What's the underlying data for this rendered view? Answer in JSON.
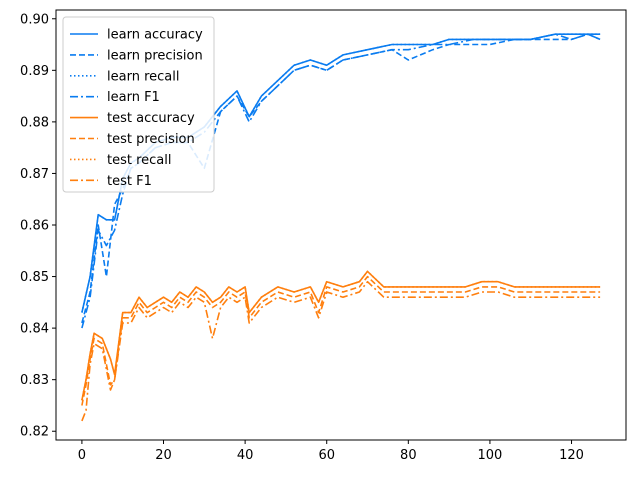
{
  "chart_data": {
    "type": "line",
    "title": "",
    "xlabel": "",
    "ylabel": "",
    "xlim": [
      -6.35,
      133.35
    ],
    "ylim": [
      0.8183,
      0.9017
    ],
    "xticks": [
      0,
      20,
      40,
      60,
      80,
      100,
      120
    ],
    "xtick_labels": [
      "0",
      "20",
      "40",
      "60",
      "80",
      "100",
      "120"
    ],
    "yticks": [
      0.82,
      0.83,
      0.84,
      0.85,
      0.86,
      0.87,
      0.88,
      0.89,
      0.9
    ],
    "ytick_labels": [
      "0.82",
      "0.83",
      "0.84",
      "0.85",
      "0.86",
      "0.87",
      "0.88",
      "0.89",
      "0.90"
    ],
    "grid": false,
    "legend_position": "upper-left",
    "colors": {
      "learn": "#0a7cf0",
      "test": "#ff7f0e"
    },
    "series": [
      {
        "name": "learn accuracy",
        "color": "#0a7cf0",
        "dash": "solid",
        "x": [
          0,
          2,
          4,
          6,
          8,
          10,
          12,
          14,
          18,
          22,
          26,
          30,
          34,
          38,
          41,
          44,
          48,
          52,
          56,
          60,
          64,
          70,
          76,
          80,
          86,
          90,
          96,
          100,
          106,
          110,
          116,
          120,
          124,
          127
        ],
        "y": [
          0.843,
          0.85,
          0.862,
          0.861,
          0.861,
          0.869,
          0.872,
          0.873,
          0.876,
          0.877,
          0.877,
          0.879,
          0.883,
          0.886,
          0.881,
          0.885,
          0.888,
          0.891,
          0.892,
          0.891,
          0.893,
          0.894,
          0.895,
          0.895,
          0.895,
          0.896,
          0.896,
          0.896,
          0.896,
          0.896,
          0.897,
          0.897,
          0.897,
          0.897
        ]
      },
      {
        "name": "learn precision",
        "color": "#0a7cf0",
        "dash": "dashed",
        "x": [
          0,
          2,
          4,
          6,
          8,
          10,
          12,
          14,
          18,
          22,
          26,
          30,
          34,
          38,
          41,
          44,
          48,
          52,
          56,
          60,
          64,
          70,
          76,
          80,
          86,
          90,
          96,
          100,
          106,
          110,
          116,
          120,
          124,
          127
        ],
        "y": [
          0.841,
          0.847,
          0.86,
          0.85,
          0.864,
          0.867,
          0.871,
          0.872,
          0.875,
          0.876,
          0.876,
          0.871,
          0.882,
          0.885,
          0.881,
          0.884,
          0.887,
          0.89,
          0.891,
          0.89,
          0.892,
          0.893,
          0.894,
          0.892,
          0.894,
          0.895,
          0.895,
          0.895,
          0.896,
          0.896,
          0.896,
          0.896,
          0.897,
          0.896
        ]
      },
      {
        "name": "learn recall",
        "color": "#0a7cf0",
        "dash": "dotted",
        "x": [
          0,
          2,
          4,
          6,
          8,
          10,
          12,
          14,
          18,
          22,
          26,
          30,
          34,
          38,
          41,
          44,
          48,
          52,
          56,
          60,
          64,
          70,
          76,
          80,
          86,
          90,
          96,
          100,
          106,
          110,
          116,
          120,
          124,
          127
        ],
        "y": [
          0.843,
          0.85,
          0.862,
          0.861,
          0.861,
          0.869,
          0.872,
          0.873,
          0.876,
          0.877,
          0.877,
          0.879,
          0.883,
          0.886,
          0.881,
          0.885,
          0.888,
          0.891,
          0.892,
          0.891,
          0.893,
          0.894,
          0.895,
          0.895,
          0.895,
          0.896,
          0.896,
          0.896,
          0.896,
          0.896,
          0.897,
          0.897,
          0.897,
          0.897
        ]
      },
      {
        "name": "learn F1",
        "color": "#0a7cf0",
        "dash": "dashdot",
        "x": [
          0,
          2,
          4,
          6,
          8,
          10,
          12,
          14,
          18,
          22,
          26,
          30,
          34,
          38,
          41,
          44,
          48,
          52,
          56,
          60,
          64,
          70,
          76,
          80,
          86,
          90,
          96,
          100,
          106,
          110,
          116,
          120,
          124,
          127
        ],
        "y": [
          0.84,
          0.846,
          0.859,
          0.856,
          0.859,
          0.866,
          0.871,
          0.872,
          0.875,
          0.876,
          0.876,
          0.878,
          0.882,
          0.885,
          0.88,
          0.884,
          0.887,
          0.89,
          0.891,
          0.89,
          0.892,
          0.893,
          0.894,
          0.894,
          0.895,
          0.895,
          0.896,
          0.896,
          0.896,
          0.896,
          0.897,
          0.896,
          0.897,
          0.896
        ]
      },
      {
        "name": "test accuracy",
        "color": "#ff7f0e",
        "dash": "solid",
        "x": [
          0,
          1,
          2,
          3,
          5,
          7,
          8,
          10,
          12,
          14,
          16,
          18,
          20,
          22,
          24,
          26,
          28,
          30,
          32,
          34,
          36,
          38,
          40,
          41,
          44,
          48,
          52,
          56,
          58,
          60,
          64,
          68,
          70,
          74,
          78,
          82,
          86,
          90,
          94,
          98,
          102,
          106,
          110,
          114,
          118,
          122,
          124,
          127
        ],
        "y": [
          0.826,
          0.83,
          0.835,
          0.839,
          0.838,
          0.834,
          0.831,
          0.843,
          0.843,
          0.846,
          0.844,
          0.845,
          0.846,
          0.845,
          0.847,
          0.846,
          0.848,
          0.847,
          0.845,
          0.846,
          0.848,
          0.847,
          0.848,
          0.843,
          0.846,
          0.848,
          0.847,
          0.848,
          0.845,
          0.849,
          0.848,
          0.849,
          0.851,
          0.848,
          0.848,
          0.848,
          0.848,
          0.848,
          0.848,
          0.849,
          0.849,
          0.848,
          0.848,
          0.848,
          0.848,
          0.848,
          0.848,
          0.848
        ]
      },
      {
        "name": "test precision",
        "color": "#ff7f0e",
        "dash": "dashed",
        "x": [
          0,
          1,
          2,
          3,
          5,
          7,
          8,
          10,
          12,
          14,
          16,
          18,
          20,
          22,
          24,
          26,
          28,
          30,
          32,
          34,
          36,
          38,
          40,
          41,
          44,
          48,
          52,
          56,
          58,
          60,
          64,
          68,
          70,
          74,
          78,
          82,
          86,
          90,
          94,
          98,
          102,
          106,
          110,
          114,
          118,
          122,
          124,
          127
        ],
        "y": [
          0.825,
          0.829,
          0.834,
          0.838,
          0.837,
          0.829,
          0.83,
          0.842,
          0.842,
          0.845,
          0.843,
          0.844,
          0.845,
          0.844,
          0.846,
          0.845,
          0.847,
          0.846,
          0.844,
          0.845,
          0.847,
          0.846,
          0.847,
          0.842,
          0.845,
          0.847,
          0.846,
          0.847,
          0.843,
          0.848,
          0.847,
          0.848,
          0.85,
          0.847,
          0.847,
          0.847,
          0.847,
          0.847,
          0.847,
          0.848,
          0.848,
          0.847,
          0.847,
          0.847,
          0.847,
          0.847,
          0.847,
          0.847
        ]
      },
      {
        "name": "test recall",
        "color": "#ff7f0e",
        "dash": "dotted",
        "x": [
          0,
          1,
          2,
          3,
          5,
          7,
          8,
          10,
          12,
          14,
          16,
          18,
          20,
          22,
          24,
          26,
          28,
          30,
          32,
          34,
          36,
          38,
          40,
          41,
          44,
          48,
          52,
          56,
          58,
          60,
          64,
          68,
          70,
          74,
          78,
          82,
          86,
          90,
          94,
          98,
          102,
          106,
          110,
          114,
          118,
          122,
          124,
          127
        ],
        "y": [
          0.826,
          0.83,
          0.835,
          0.839,
          0.838,
          0.834,
          0.831,
          0.843,
          0.843,
          0.846,
          0.844,
          0.845,
          0.846,
          0.845,
          0.847,
          0.846,
          0.848,
          0.847,
          0.845,
          0.846,
          0.848,
          0.847,
          0.848,
          0.843,
          0.846,
          0.848,
          0.847,
          0.848,
          0.845,
          0.849,
          0.848,
          0.849,
          0.851,
          0.848,
          0.848,
          0.848,
          0.848,
          0.848,
          0.848,
          0.849,
          0.849,
          0.848,
          0.848,
          0.848,
          0.848,
          0.848,
          0.848,
          0.848
        ]
      },
      {
        "name": "test F1",
        "color": "#ff7f0e",
        "dash": "dashdot",
        "x": [
          0,
          1,
          2,
          3,
          5,
          7,
          8,
          10,
          12,
          14,
          16,
          18,
          20,
          22,
          24,
          26,
          28,
          30,
          32,
          34,
          36,
          38,
          40,
          41,
          44,
          48,
          52,
          56,
          58,
          60,
          64,
          68,
          70,
          74,
          78,
          82,
          86,
          90,
          94,
          98,
          102,
          106,
          110,
          114,
          118,
          122,
          124,
          127
        ],
        "y": [
          0.822,
          0.824,
          0.833,
          0.837,
          0.836,
          0.828,
          0.83,
          0.841,
          0.841,
          0.844,
          0.842,
          0.843,
          0.844,
          0.843,
          0.845,
          0.844,
          0.846,
          0.845,
          0.838,
          0.844,
          0.846,
          0.845,
          0.846,
          0.841,
          0.844,
          0.846,
          0.845,
          0.846,
          0.842,
          0.847,
          0.846,
          0.847,
          0.849,
          0.846,
          0.846,
          0.846,
          0.846,
          0.846,
          0.846,
          0.847,
          0.847,
          0.846,
          0.846,
          0.846,
          0.846,
          0.846,
          0.846,
          0.846
        ]
      }
    ]
  }
}
